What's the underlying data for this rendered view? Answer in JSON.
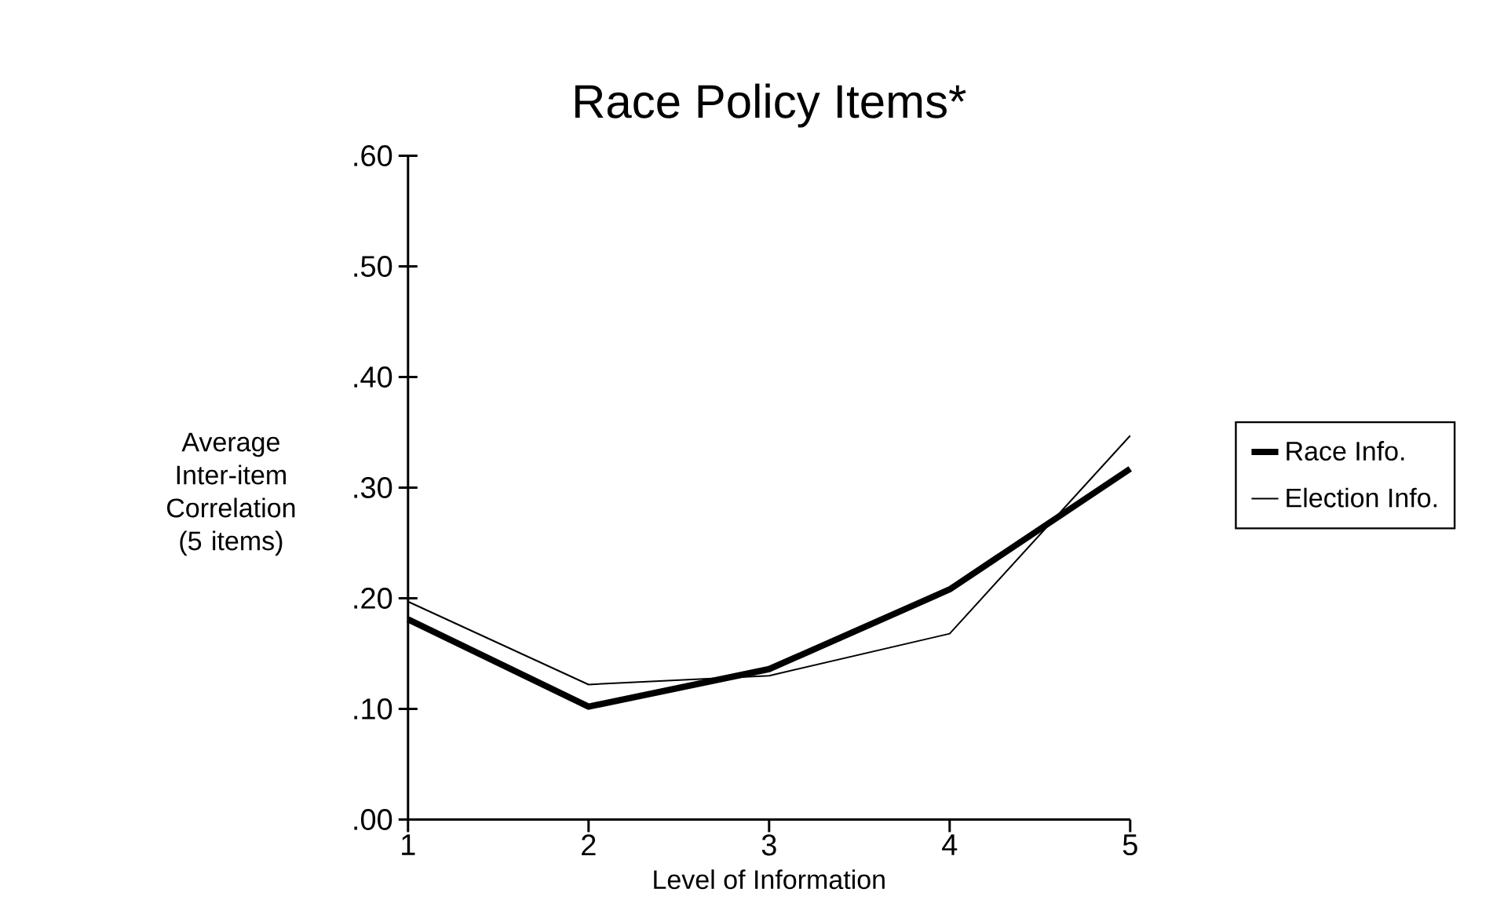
{
  "chart_data": {
    "type": "line",
    "title": "Race Policy Items*",
    "xlabel": "Level of Information",
    "ylabel": "Average Inter-item Correlation (5 items)",
    "x": [
      1,
      2,
      3,
      4,
      5
    ],
    "series": [
      {
        "name": "Race Info.",
        "color": "#000000",
        "values": [
          0.181,
          0.102,
          0.136,
          0.208,
          0.317
        ]
      },
      {
        "name": "Election Info.",
        "color": "#000000",
        "values": [
          0.197,
          0.122,
          0.13,
          0.168,
          0.347
        ]
      }
    ],
    "xlim": [
      1,
      5
    ],
    "xticks": [
      1,
      2,
      3,
      4,
      5
    ],
    "ylim": [
      0,
      0.6
    ],
    "yticks": [
      {
        "value": 0,
        "label": ".00"
      },
      {
        "value": 0.1,
        "label": ".10"
      },
      {
        "value": 0.2,
        "label": ".20"
      },
      {
        "value": 0.3,
        "label": ".30"
      },
      {
        "value": 0.4,
        "label": ".40"
      },
      {
        "value": 0.5,
        "label": ".50"
      },
      {
        "value": 0.6,
        "label": ".60"
      }
    ],
    "legend": "right",
    "marker": "none",
    "line_style": "solid",
    "grid": false
  }
}
